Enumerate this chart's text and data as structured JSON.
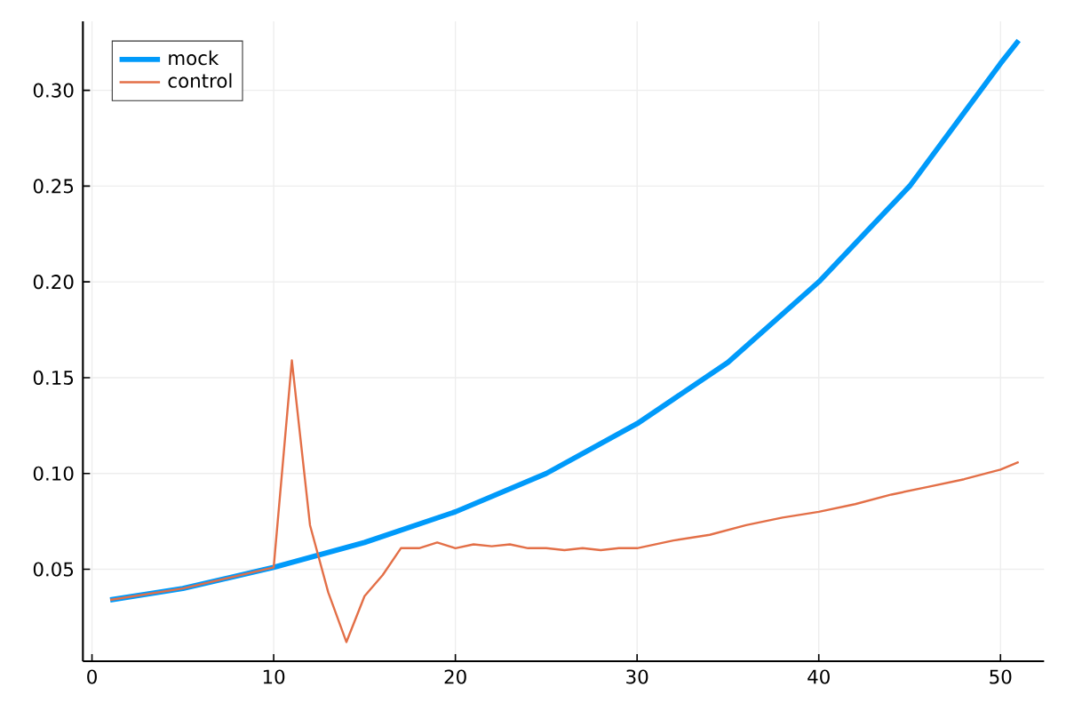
{
  "chart_data": {
    "type": "line",
    "xlim": [
      -0.5,
      52.4
    ],
    "ylim": [
      0.002,
      0.336
    ],
    "xticks": [
      0,
      10,
      20,
      30,
      40,
      50
    ],
    "yticks": [
      0.05,
      {
        "value": 0.1,
        "label": "0.10"
      },
      0.15,
      {
        "value": 0.2,
        "label": "0.20"
      },
      0.25,
      {
        "value": 0.3,
        "label": "0.30"
      }
    ],
    "grid": true,
    "legend": "top left",
    "marker": "none",
    "line_style": "solid",
    "series": [
      {
        "name": "mock",
        "color": "#009afa",
        "x": [
          1,
          5,
          10,
          15,
          20,
          25,
          30,
          35,
          40,
          45,
          50,
          51
        ],
        "values": [
          0.034,
          0.04,
          0.051,
          0.064,
          0.08,
          0.1,
          0.126,
          0.158,
          0.2,
          0.25,
          0.314,
          0.326
        ]
      },
      {
        "name": "control",
        "color": "#e36f47",
        "x": [
          1,
          5,
          10,
          11,
          12,
          13,
          14,
          15,
          16,
          17,
          18,
          19,
          20,
          21,
          22,
          23,
          24,
          25,
          26,
          27,
          28,
          29,
          30,
          32,
          34,
          36,
          38,
          40,
          42,
          44,
          46,
          48,
          50,
          51
        ],
        "values": [
          0.034,
          0.04,
          0.051,
          0.159,
          0.073,
          0.038,
          0.012,
          0.036,
          0.047,
          0.061,
          0.061,
          0.064,
          0.061,
          0.063,
          0.062,
          0.063,
          0.061,
          0.061,
          0.06,
          0.061,
          0.06,
          0.061,
          0.061,
          0.065,
          0.068,
          0.073,
          0.077,
          0.08,
          0.084,
          0.089,
          0.093,
          0.097,
          0.102,
          0.106
        ]
      }
    ]
  }
}
